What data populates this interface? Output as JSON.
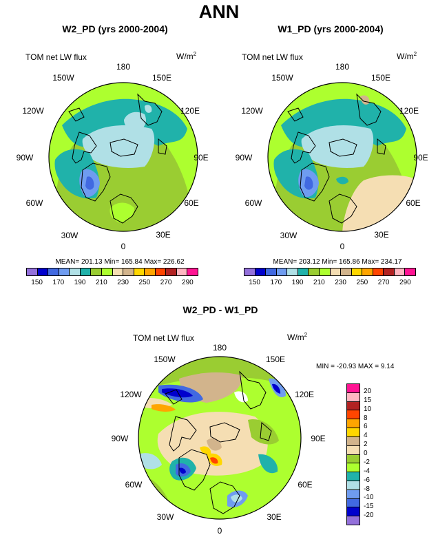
{
  "figure": {
    "title": "ANN"
  },
  "panels": [
    {
      "title": "W2_PD (yrs 2000-2004)",
      "variable": "TOM net LW flux",
      "units_base": "W/m",
      "units_exp": "2",
      "lon_labels": [
        "180",
        "150E",
        "120E",
        "90E",
        "60E",
        "30E",
        "0",
        "30W",
        "60W",
        "90W",
        "120W",
        "150W"
      ],
      "stats": "MEAN= 201.13  Min= 165.84  Max= 226.62",
      "colorbar_ticks": [
        "150",
        "170",
        "190",
        "210",
        "230",
        "250",
        "270",
        "290"
      ]
    },
    {
      "title": "W1_PD (yrs 2000-2004)",
      "variable": "TOM net LW flux",
      "units_base": "W/m",
      "units_exp": "2",
      "lon_labels": [
        "180",
        "150E",
        "120E",
        "90E",
        "60E",
        "30E",
        "0",
        "30W",
        "60W",
        "90W",
        "120W",
        "150W"
      ],
      "stats": "MEAN= 203.12  Min= 165.86  Max= 234.17",
      "colorbar_ticks": [
        "150",
        "170",
        "190",
        "210",
        "230",
        "250",
        "270",
        "290"
      ]
    }
  ],
  "diff_panel": {
    "title": "W2_PD - W1_PD",
    "variable": "TOM net LW flux",
    "units_base": "W/m",
    "units_exp": "2",
    "lon_labels": [
      "180",
      "150E",
      "120E",
      "90E",
      "60E",
      "30E",
      "0",
      "30W",
      "60W",
      "90W",
      "120W",
      "150W"
    ],
    "stats": "MIN = -20.93 MAX =   9.14",
    "colorbar_ticks": [
      "20",
      "15",
      "10",
      "8",
      "6",
      "4",
      "2",
      "0",
      "-2",
      "-4",
      "-6",
      "-8",
      "-10",
      "-15",
      "-20"
    ]
  },
  "colors": {
    "abs_scale": [
      "#9370db",
      "#0000cd",
      "#4169e1",
      "#6f9cf0",
      "#b0e0e6",
      "#20b2aa",
      "#9acd32",
      "#adff2f",
      "#f5deb3",
      "#d2b48c",
      "#ffd700",
      "#ffa500",
      "#ff4500",
      "#b22222",
      "#ffb6c1",
      "#ff1493"
    ],
    "diff_scale": [
      "#ff1493",
      "#ffb6c1",
      "#b22222",
      "#ff4500",
      "#ffa500",
      "#ffd700",
      "#d2b48c",
      "#f5deb3",
      "#9acd32",
      "#adff2f",
      "#20b2aa",
      "#b0e0e6",
      "#6f9cf0",
      "#4169e1",
      "#0000cd",
      "#9370db"
    ]
  }
}
